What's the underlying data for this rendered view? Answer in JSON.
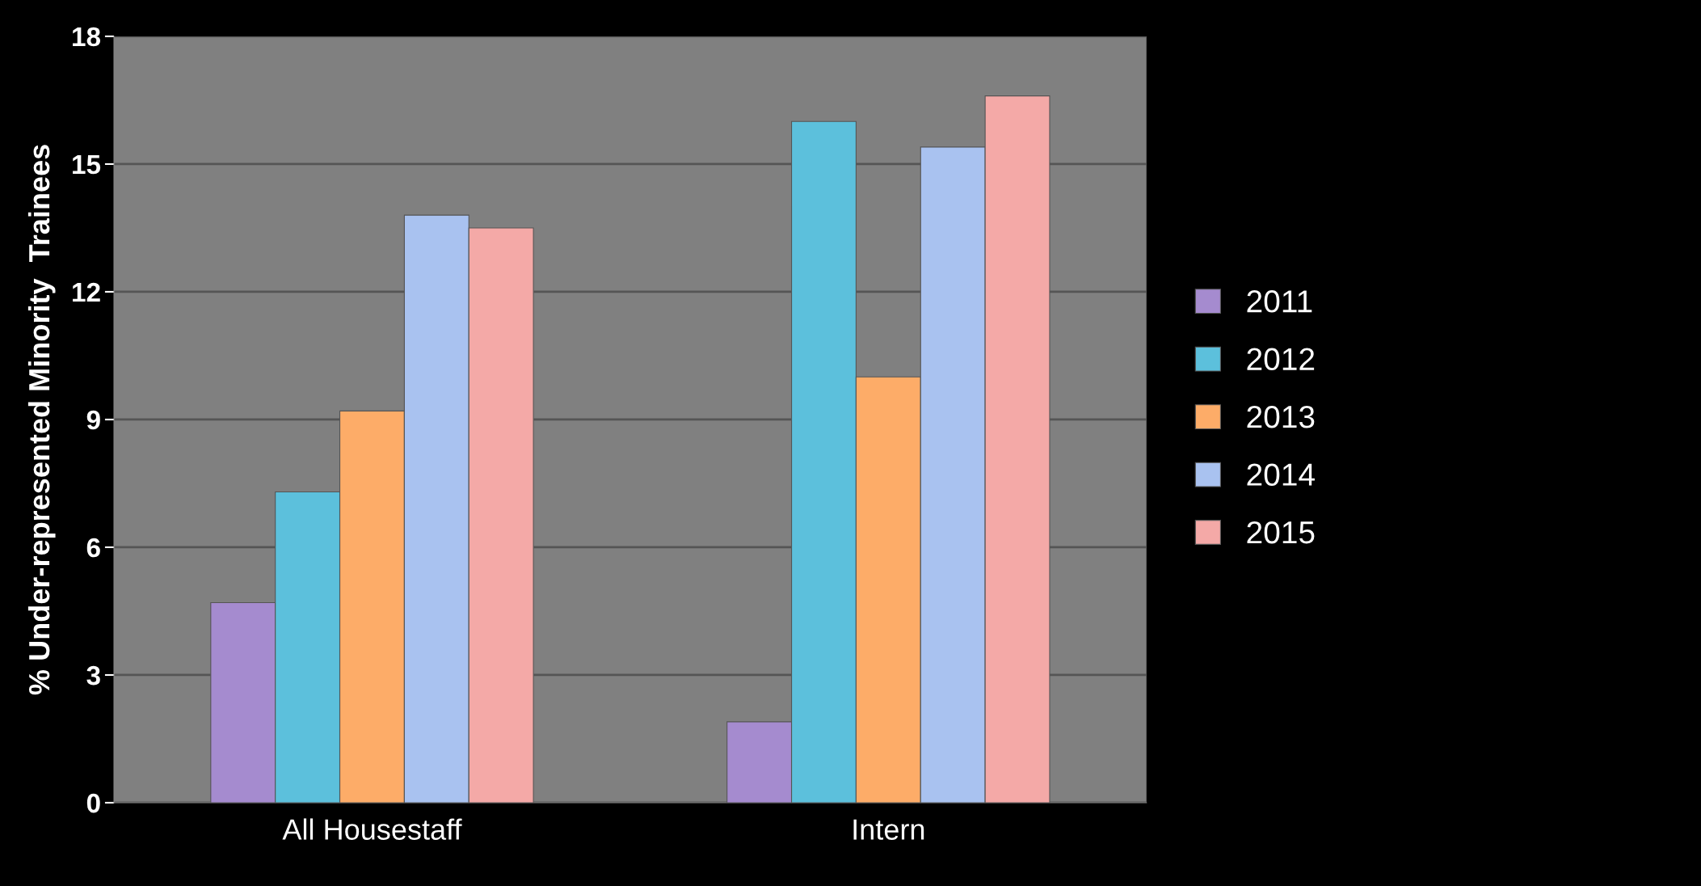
{
  "chart_data": {
    "type": "bar",
    "ylabel": "% Under-represented Minority  Trainees",
    "categories": [
      "All Housestaff",
      "Intern"
    ],
    "series": [
      {
        "name": "2011",
        "color": "#a58bcf",
        "values": [
          4.7,
          1.9
        ]
      },
      {
        "name": "2012",
        "color": "#5cc0dc",
        "values": [
          7.3,
          16.0
        ]
      },
      {
        "name": "2013",
        "color": "#fdac68",
        "values": [
          9.2,
          10.0
        ]
      },
      {
        "name": "2014",
        "color": "#a9c2f0",
        "values": [
          13.8,
          15.4
        ]
      },
      {
        "name": "2015",
        "color": "#f4a9a7",
        "values": [
          13.5,
          16.6
        ]
      }
    ],
    "ylim": [
      0,
      18
    ],
    "yticks": [
      0,
      3,
      6,
      9,
      12,
      15,
      18
    ],
    "grid": "y",
    "legend": "right"
  }
}
